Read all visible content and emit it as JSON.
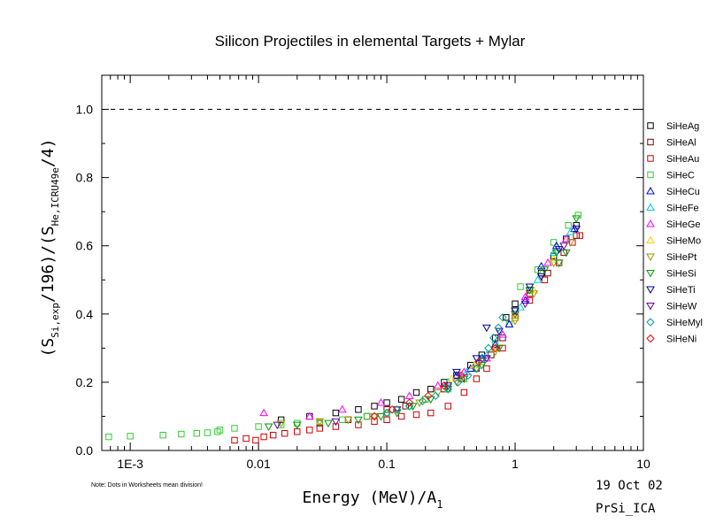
{
  "chart_data": {
    "type": "scatter",
    "title": "Silicon Projectiles in elemental Targets + Mylar",
    "xlabel": {
      "main": "Energy (MeV)/A",
      "sub": "1"
    },
    "ylabel": {
      "p1": "(S",
      "s1": "Si,exp",
      "p2": "/196)/(S",
      "s2": "He,ICRU49e",
      "p3": "/4)"
    },
    "xscale": "log",
    "xlim": [
      0.0006,
      10
    ],
    "ylim": [
      0,
      1.1
    ],
    "xtick_labels": [
      "1E-3",
      "0.01",
      "0.1",
      "1",
      "10"
    ],
    "xtick_values": [
      0.001,
      0.01,
      0.1,
      1,
      10
    ],
    "ytick_labels": [
      "0.0",
      "0.2",
      "0.4",
      "0.6",
      "0.8",
      "1.0"
    ],
    "ytick_values": [
      0,
      0.2,
      0.4,
      0.6,
      0.8,
      1.0
    ],
    "reference_line": {
      "y": 1.0,
      "style": "dashed"
    },
    "legend_placement": "right",
    "series": [
      {
        "name": "SiHeAg",
        "marker": "square",
        "color": "#000000",
        "points": [
          [
            0.015,
            0.09
          ],
          [
            0.025,
            0.1
          ],
          [
            0.04,
            0.11
          ],
          [
            0.06,
            0.12
          ],
          [
            0.08,
            0.13
          ],
          [
            0.1,
            0.14
          ],
          [
            0.13,
            0.15
          ],
          [
            0.17,
            0.17
          ],
          [
            0.22,
            0.18
          ],
          [
            0.28,
            0.2
          ],
          [
            0.35,
            0.22
          ],
          [
            0.45,
            0.25
          ],
          [
            0.55,
            0.28
          ],
          [
            0.7,
            0.33
          ],
          [
            0.85,
            0.39
          ],
          [
            1.0,
            0.43
          ],
          [
            1.3,
            0.47
          ],
          [
            1.6,
            0.52
          ],
          [
            2.0,
            0.57
          ],
          [
            2.5,
            0.62
          ],
          [
            3.0,
            0.66
          ]
        ]
      },
      {
        "name": "SiHeAl",
        "marker": "square",
        "color": "#800000",
        "points": [
          [
            0.03,
            0.08
          ],
          [
            0.05,
            0.09
          ],
          [
            0.07,
            0.1
          ],
          [
            0.1,
            0.12
          ],
          [
            0.14,
            0.13
          ],
          [
            0.2,
            0.15
          ],
          [
            0.28,
            0.18
          ],
          [
            0.38,
            0.21
          ],
          [
            0.5,
            0.24
          ],
          [
            0.65,
            0.28
          ],
          [
            0.8,
            0.33
          ],
          [
            1.0,
            0.41
          ],
          [
            1.3,
            0.46
          ],
          [
            1.8,
            0.52
          ],
          [
            2.4,
            0.58
          ],
          [
            3.0,
            0.63
          ]
        ]
      },
      {
        "name": "SiHeAu",
        "marker": "square",
        "color": "#cc0000",
        "points": [
          [
            0.0065,
            0.03
          ],
          [
            0.008,
            0.035
          ],
          [
            0.0095,
            0.03
          ],
          [
            0.011,
            0.04
          ],
          [
            0.013,
            0.045
          ],
          [
            0.016,
            0.05
          ],
          [
            0.02,
            0.055
          ],
          [
            0.025,
            0.06
          ],
          [
            0.03,
            0.065
          ],
          [
            0.04,
            0.07
          ],
          [
            0.06,
            0.075
          ],
          [
            0.08,
            0.085
          ],
          [
            0.1,
            0.09
          ],
          [
            0.13,
            0.1
          ],
          [
            0.17,
            0.105
          ],
          [
            0.22,
            0.11
          ],
          [
            0.3,
            0.13
          ],
          [
            0.4,
            0.17
          ],
          [
            0.5,
            0.21
          ],
          [
            0.6,
            0.24
          ],
          [
            0.8,
            0.3
          ],
          [
            1.0,
            0.39
          ],
          [
            1.3,
            0.44
          ],
          [
            1.7,
            0.5
          ],
          [
            2.2,
            0.55
          ],
          [
            2.8,
            0.61
          ],
          [
            3.2,
            0.63
          ]
        ]
      },
      {
        "name": "SiHeC",
        "marker": "square",
        "color": "#33cc33",
        "points": [
          [
            0.00068,
            0.04
          ],
          [
            0.001,
            0.042
          ],
          [
            0.0018,
            0.045
          ],
          [
            0.0025,
            0.048
          ],
          [
            0.0033,
            0.05
          ],
          [
            0.004,
            0.052
          ],
          [
            0.0048,
            0.055
          ],
          [
            0.005,
            0.06
          ],
          [
            0.0065,
            0.065
          ],
          [
            0.01,
            0.07
          ],
          [
            0.015,
            0.075
          ],
          [
            0.02,
            0.08
          ],
          [
            0.03,
            0.085
          ],
          [
            0.045,
            0.09
          ],
          [
            0.07,
            0.1
          ],
          [
            0.1,
            0.11
          ],
          [
            0.15,
            0.13
          ],
          [
            0.2,
            0.15
          ],
          [
            0.3,
            0.18
          ],
          [
            0.4,
            0.21
          ],
          [
            0.55,
            0.26
          ],
          [
            0.7,
            0.31
          ],
          [
            0.9,
            0.37
          ],
          [
            1.1,
            0.48
          ],
          [
            1.5,
            0.53
          ],
          [
            2.0,
            0.61
          ],
          [
            2.6,
            0.66
          ],
          [
            3.1,
            0.69
          ]
        ]
      },
      {
        "name": "SiHeCu",
        "marker": "triangle-up",
        "color": "#0000ff",
        "points": [
          [
            0.35,
            0.22
          ],
          [
            0.45,
            0.24
          ],
          [
            0.55,
            0.27
          ],
          [
            0.7,
            0.31
          ],
          [
            0.9,
            0.37
          ],
          [
            1.2,
            0.44
          ],
          [
            1.6,
            0.54
          ],
          [
            2.1,
            0.6
          ],
          [
            2.9,
            0.65
          ]
        ]
      },
      {
        "name": "SiHeFe",
        "marker": "triangle-up",
        "color": "#00cccc",
        "points": [
          [
            0.3,
            0.2
          ],
          [
            0.42,
            0.23
          ],
          [
            0.6,
            0.28
          ],
          [
            0.8,
            0.34
          ],
          [
            1.1,
            0.42
          ],
          [
            1.5,
            0.5
          ],
          [
            2.0,
            0.58
          ],
          [
            2.7,
            0.64
          ]
        ]
      },
      {
        "name": "SiHeGe",
        "marker": "triangle-up",
        "color": "#ff00ff",
        "points": [
          [
            0.011,
            0.11
          ],
          [
            0.025,
            0.1
          ],
          [
            0.045,
            0.12
          ],
          [
            0.09,
            0.14
          ],
          [
            0.15,
            0.16
          ],
          [
            0.25,
            0.19
          ],
          [
            0.4,
            0.23
          ],
          [
            0.6,
            0.27
          ],
          [
            0.8,
            0.34
          ],
          [
            1.2,
            0.45
          ],
          [
            1.8,
            0.55
          ],
          [
            2.5,
            0.62
          ]
        ]
      },
      {
        "name": "SiHeMo",
        "marker": "triangle-up",
        "color": "#ffcc00",
        "points": [
          [
            0.32,
            0.21
          ],
          [
            0.48,
            0.25
          ],
          [
            0.7,
            0.3
          ],
          [
            1.0,
            0.39
          ],
          [
            1.4,
            0.47
          ],
          [
            2.0,
            0.56
          ]
        ]
      },
      {
        "name": "SiHePt",
        "marker": "triangle-down",
        "color": "#999900",
        "points": [
          [
            0.015,
            0.08
          ],
          [
            0.03,
            0.085
          ],
          [
            0.05,
            0.09
          ],
          [
            0.08,
            0.1
          ],
          [
            0.12,
            0.12
          ],
          [
            0.18,
            0.14
          ],
          [
            0.25,
            0.17
          ],
          [
            0.35,
            0.2
          ],
          [
            0.5,
            0.24
          ],
          [
            0.7,
            0.29
          ],
          [
            1.0,
            0.38
          ],
          [
            1.4,
            0.46
          ],
          [
            2.0,
            0.55
          ],
          [
            2.7,
            0.61
          ]
        ]
      },
      {
        "name": "SiHeSi",
        "marker": "triangle-down",
        "color": "#009900",
        "points": [
          [
            0.012,
            0.07
          ],
          [
            0.02,
            0.075
          ],
          [
            0.035,
            0.08
          ],
          [
            0.06,
            0.09
          ],
          [
            0.09,
            0.1
          ],
          [
            0.12,
            0.11
          ],
          [
            0.16,
            0.13
          ],
          [
            0.22,
            0.15
          ],
          [
            0.3,
            0.18
          ],
          [
            0.4,
            0.21
          ],
          [
            0.55,
            0.25
          ],
          [
            0.75,
            0.3
          ],
          [
            1.0,
            0.4
          ],
          [
            1.3,
            0.47
          ],
          [
            1.7,
            0.53
          ],
          [
            2.1,
            0.58
          ],
          [
            2.2,
            0.55
          ],
          [
            2.5,
            0.58
          ],
          [
            3.0,
            0.68
          ]
        ]
      },
      {
        "name": "SiHeTi",
        "marker": "triangle-down",
        "color": "#000099",
        "points": [
          [
            0.35,
            0.23
          ],
          [
            0.5,
            0.27
          ],
          [
            0.6,
            0.36
          ],
          [
            0.75,
            0.35
          ],
          [
            1.0,
            0.41
          ],
          [
            1.3,
            0.48
          ],
          [
            1.6,
            0.51
          ],
          [
            2.2,
            0.59
          ],
          [
            3.0,
            0.65
          ]
        ]
      },
      {
        "name": "SiHeW",
        "marker": "triangle-down",
        "color": "#660099",
        "points": [
          [
            0.014,
            0.075
          ],
          [
            0.04,
            0.085
          ],
          [
            0.12,
            0.12
          ],
          [
            0.3,
            0.19
          ],
          [
            0.6,
            0.27
          ],
          [
            1.2,
            0.43
          ],
          [
            2.4,
            0.6
          ]
        ]
      },
      {
        "name": "SiHeMyl",
        "marker": "diamond",
        "color": "#009999",
        "points": [
          [
            0.1,
            0.11
          ],
          [
            0.12,
            0.12
          ],
          [
            0.15,
            0.13
          ],
          [
            0.19,
            0.145
          ],
          [
            0.24,
            0.16
          ],
          [
            0.3,
            0.18
          ],
          [
            0.36,
            0.2
          ],
          [
            0.43,
            0.22
          ],
          [
            0.5,
            0.24
          ],
          [
            0.56,
            0.27
          ],
          [
            0.62,
            0.3
          ],
          [
            0.68,
            0.33
          ],
          [
            0.74,
            0.36
          ],
          [
            0.8,
            0.39
          ]
        ]
      },
      {
        "name": "SiHeNi",
        "marker": "diamond",
        "color": "#ff0000",
        "points": [
          [
            0.08,
            0.1
          ],
          [
            0.11,
            0.12
          ],
          [
            0.15,
            0.14
          ],
          [
            0.21,
            0.16
          ],
          [
            0.28,
            0.19
          ],
          [
            0.38,
            0.22
          ],
          [
            0.52,
            0.26
          ],
          [
            0.7,
            0.3
          ]
        ]
      }
    ],
    "annotations": {
      "note": "Note: Dots in Worksheets mean division!",
      "date": "19 Oct 02",
      "file": "PrSi_ICA"
    }
  }
}
